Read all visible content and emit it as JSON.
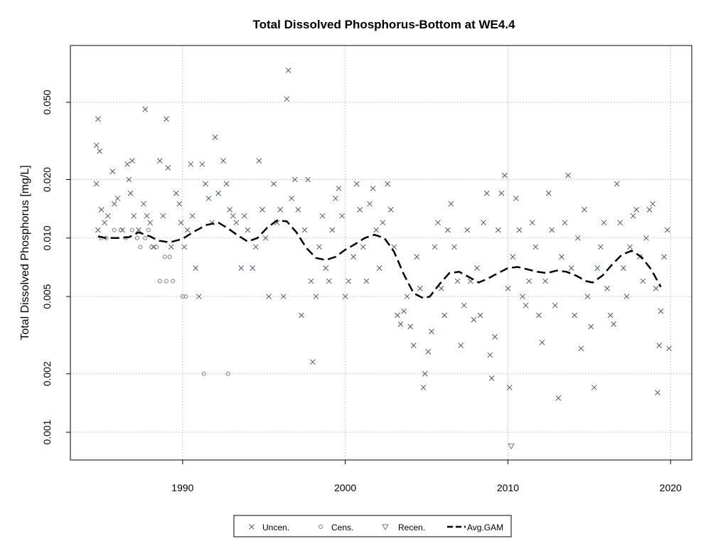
{
  "chart_data": {
    "type": "scatter",
    "title": "Total Dissolved Phosphorus-Bottom at WE4.4",
    "xlabel": "",
    "ylabel": "Total Dissolved Phosphorus [mg/L]",
    "xlim": [
      1983.1,
      2021.3
    ],
    "ylim": [
      0.00072,
      0.098
    ],
    "ylog": true,
    "x_ticks": [
      1990,
      2000,
      2010,
      2020
    ],
    "x_tick_labels": [
      "1990",
      "2000",
      "2010",
      "2020"
    ],
    "y_ticks": [
      0.001,
      0.002,
      0.005,
      0.01,
      0.02,
      0.05
    ],
    "y_tick_labels": [
      "0.001",
      "0.002",
      "0.005",
      "0.010",
      "0.020",
      "0.050"
    ],
    "grid": true,
    "legend_placement": "bottom-center",
    "colors": {
      "uncen": "#4a5670",
      "cens": "#7a7a7a",
      "recen": "#7a7a7a",
      "gam": "#000000"
    },
    "series": [
      {
        "name": "Uncen.",
        "marker": "x",
        "points": [
          [
            1984.7,
            0.03
          ],
          [
            1984.8,
            0.041
          ],
          [
            1984.9,
            0.028
          ],
          [
            1984.7,
            0.019
          ],
          [
            1985.0,
            0.014
          ],
          [
            1984.8,
            0.011
          ],
          [
            1985.2,
            0.012
          ],
          [
            1985.4,
            0.013
          ],
          [
            1985.7,
            0.022
          ],
          [
            1985.8,
            0.015
          ],
          [
            1986.0,
            0.016
          ],
          [
            1986.3,
            0.011
          ],
          [
            1986.6,
            0.024
          ],
          [
            1986.7,
            0.02
          ],
          [
            1986.9,
            0.025
          ],
          [
            1986.8,
            0.017
          ],
          [
            1987.0,
            0.013
          ],
          [
            1987.3,
            0.011
          ],
          [
            1987.6,
            0.015
          ],
          [
            1987.7,
            0.046
          ],
          [
            1987.8,
            0.013
          ],
          [
            1988.0,
            0.012
          ],
          [
            1988.2,
            0.009
          ],
          [
            1988.6,
            0.025
          ],
          [
            1988.8,
            0.013
          ],
          [
            1989.0,
            0.041
          ],
          [
            1989.1,
            0.023
          ],
          [
            1989.3,
            0.009
          ],
          [
            1989.6,
            0.017
          ],
          [
            1989.8,
            0.015
          ],
          [
            1989.9,
            0.012
          ],
          [
            1990.1,
            0.009
          ],
          [
            1990.3,
            0.011
          ],
          [
            1990.5,
            0.024
          ],
          [
            1990.6,
            0.013
          ],
          [
            1990.8,
            0.007
          ],
          [
            1991.0,
            0.005
          ],
          [
            1991.2,
            0.024
          ],
          [
            1991.4,
            0.019
          ],
          [
            1991.6,
            0.016
          ],
          [
            1991.8,
            0.012
          ],
          [
            1992.0,
            0.033
          ],
          [
            1992.2,
            0.017
          ],
          [
            1992.5,
            0.025
          ],
          [
            1992.7,
            0.019
          ],
          [
            1992.9,
            0.014
          ],
          [
            1993.1,
            0.013
          ],
          [
            1993.3,
            0.012
          ],
          [
            1993.6,
            0.007
          ],
          [
            1993.8,
            0.013
          ],
          [
            1994.0,
            0.011
          ],
          [
            1994.3,
            0.007
          ],
          [
            1994.5,
            0.009
          ],
          [
            1994.7,
            0.025
          ],
          [
            1994.9,
            0.014
          ],
          [
            1995.1,
            0.01
          ],
          [
            1995.3,
            0.005
          ],
          [
            1995.6,
            0.019
          ],
          [
            1995.8,
            0.012
          ],
          [
            1996.0,
            0.014
          ],
          [
            1996.2,
            0.005
          ],
          [
            1996.4,
            0.052
          ],
          [
            1996.5,
            0.073
          ],
          [
            1996.7,
            0.016
          ],
          [
            1996.9,
            0.02
          ],
          [
            1997.1,
            0.014
          ],
          [
            1997.3,
            0.004
          ],
          [
            1997.5,
            0.011
          ],
          [
            1997.7,
            0.02
          ],
          [
            1997.9,
            0.006
          ],
          [
            1998.0,
            0.0023
          ],
          [
            1998.2,
            0.005
          ],
          [
            1998.4,
            0.009
          ],
          [
            1998.6,
            0.013
          ],
          [
            1998.8,
            0.007
          ],
          [
            1999.0,
            0.006
          ],
          [
            1999.2,
            0.011
          ],
          [
            1999.4,
            0.016
          ],
          [
            1999.6,
            0.018
          ],
          [
            1999.8,
            0.013
          ],
          [
            2000.0,
            0.005
          ],
          [
            2000.2,
            0.006
          ],
          [
            2000.5,
            0.008
          ],
          [
            2000.7,
            0.019
          ],
          [
            2000.9,
            0.014
          ],
          [
            2001.1,
            0.009
          ],
          [
            2001.3,
            0.006
          ],
          [
            2001.5,
            0.015
          ],
          [
            2001.7,
            0.018
          ],
          [
            2001.9,
            0.011
          ],
          [
            2002.1,
            0.007
          ],
          [
            2002.3,
            0.012
          ],
          [
            2002.6,
            0.019
          ],
          [
            2002.8,
            0.014
          ],
          [
            2003.0,
            0.009
          ],
          [
            2003.2,
            0.004
          ],
          [
            2003.4,
            0.0036
          ],
          [
            2003.6,
            0.0042
          ],
          [
            2003.8,
            0.005
          ],
          [
            2004.0,
            0.0035
          ],
          [
            2004.2,
            0.0028
          ],
          [
            2004.4,
            0.008
          ],
          [
            2004.6,
            0.0055
          ],
          [
            2004.8,
            0.0017
          ],
          [
            2004.9,
            0.002
          ],
          [
            2005.1,
            0.0026
          ],
          [
            2005.3,
            0.0033
          ],
          [
            2005.5,
            0.009
          ],
          [
            2005.7,
            0.012
          ],
          [
            2005.9,
            0.0055
          ],
          [
            2006.1,
            0.004
          ],
          [
            2006.3,
            0.011
          ],
          [
            2006.5,
            0.015
          ],
          [
            2006.7,
            0.009
          ],
          [
            2006.9,
            0.006
          ],
          [
            2007.1,
            0.0028
          ],
          [
            2007.3,
            0.0045
          ],
          [
            2007.5,
            0.011
          ],
          [
            2007.7,
            0.006
          ],
          [
            2007.9,
            0.0038
          ],
          [
            2008.1,
            0.007
          ],
          [
            2008.3,
            0.004
          ],
          [
            2008.5,
            0.012
          ],
          [
            2008.7,
            0.017
          ],
          [
            2008.9,
            0.0025
          ],
          [
            2009.0,
            0.0019
          ],
          [
            2009.2,
            0.0031
          ],
          [
            2009.4,
            0.011
          ],
          [
            2009.6,
            0.017
          ],
          [
            2009.8,
            0.021
          ],
          [
            2010.0,
            0.0055
          ],
          [
            2010.1,
            0.0017
          ],
          [
            2010.3,
            0.008
          ],
          [
            2010.5,
            0.016
          ],
          [
            2010.7,
            0.011
          ],
          [
            2010.9,
            0.005
          ],
          [
            2011.1,
            0.0045
          ],
          [
            2011.3,
            0.006
          ],
          [
            2011.5,
            0.012
          ],
          [
            2011.7,
            0.009
          ],
          [
            2011.9,
            0.004
          ],
          [
            2012.1,
            0.0029
          ],
          [
            2012.3,
            0.006
          ],
          [
            2012.5,
            0.017
          ],
          [
            2012.7,
            0.011
          ],
          [
            2012.9,
            0.0045
          ],
          [
            2013.1,
            0.0015
          ],
          [
            2013.3,
            0.008
          ],
          [
            2013.5,
            0.012
          ],
          [
            2013.7,
            0.021
          ],
          [
            2013.9,
            0.007
          ],
          [
            2014.1,
            0.004
          ],
          [
            2014.3,
            0.01
          ],
          [
            2014.5,
            0.0027
          ],
          [
            2014.7,
            0.014
          ],
          [
            2014.9,
            0.005
          ],
          [
            2015.1,
            0.0035
          ],
          [
            2015.3,
            0.0017
          ],
          [
            2015.5,
            0.007
          ],
          [
            2015.7,
            0.009
          ],
          [
            2015.9,
            0.012
          ],
          [
            2016.1,
            0.0055
          ],
          [
            2016.3,
            0.004
          ],
          [
            2016.5,
            0.0036
          ],
          [
            2016.7,
            0.019
          ],
          [
            2016.9,
            0.012
          ],
          [
            2017.1,
            0.007
          ],
          [
            2017.3,
            0.005
          ],
          [
            2017.5,
            0.009
          ],
          [
            2017.7,
            0.013
          ],
          [
            2017.9,
            0.014
          ],
          [
            2018.1,
            0.008
          ],
          [
            2018.3,
            0.006
          ],
          [
            2018.5,
            0.01
          ],
          [
            2018.7,
            0.014
          ],
          [
            2018.9,
            0.015
          ],
          [
            2019.1,
            0.0055
          ],
          [
            2019.2,
            0.0016
          ],
          [
            2019.3,
            0.0028
          ],
          [
            2019.4,
            0.0042
          ],
          [
            2019.6,
            0.008
          ],
          [
            2019.8,
            0.011
          ],
          [
            2019.9,
            0.0027
          ]
        ]
      },
      {
        "name": "Cens.",
        "marker": "circle",
        "points": [
          [
            1985.0,
            0.01
          ],
          [
            1985.3,
            0.01
          ],
          [
            1985.8,
            0.011
          ],
          [
            1986.2,
            0.011
          ],
          [
            1986.5,
            0.01
          ],
          [
            1986.9,
            0.011
          ],
          [
            1987.2,
            0.01
          ],
          [
            1987.4,
            0.009
          ],
          [
            1987.7,
            0.01
          ],
          [
            1987.9,
            0.011
          ],
          [
            1988.1,
            0.009
          ],
          [
            1988.4,
            0.009
          ],
          [
            1988.6,
            0.006
          ],
          [
            1988.9,
            0.008
          ],
          [
            1989.0,
            0.006
          ],
          [
            1989.2,
            0.008
          ],
          [
            1989.4,
            0.006
          ],
          [
            1990.0,
            0.005
          ],
          [
            1990.2,
            0.005
          ],
          [
            1991.3,
            0.002
          ],
          [
            1992.8,
            0.002
          ]
        ]
      },
      {
        "name": "Recen.",
        "marker": "triangle-down",
        "points": [
          [
            2010.2,
            0.00085
          ]
        ]
      },
      {
        "name": "Avg.GAM",
        "marker": "dashed-line",
        "points": [
          [
            1984.8,
            0.0102
          ],
          [
            1985.3,
            0.01
          ],
          [
            1986.0,
            0.01
          ],
          [
            1986.7,
            0.0101
          ],
          [
            1987.3,
            0.0107
          ],
          [
            1988.0,
            0.0102
          ],
          [
            1988.5,
            0.0097
          ],
          [
            1989.2,
            0.0095
          ],
          [
            1990.0,
            0.0099
          ],
          [
            1990.7,
            0.0108
          ],
          [
            1991.5,
            0.0117
          ],
          [
            1992.2,
            0.012
          ],
          [
            1992.8,
            0.0112
          ],
          [
            1993.4,
            0.0103
          ],
          [
            1994.0,
            0.0096
          ],
          [
            1994.6,
            0.01
          ],
          [
            1995.2,
            0.0113
          ],
          [
            1995.8,
            0.0123
          ],
          [
            1996.4,
            0.0122
          ],
          [
            1997.0,
            0.0107
          ],
          [
            1997.6,
            0.0089
          ],
          [
            1998.2,
            0.0079
          ],
          [
            1998.8,
            0.0077
          ],
          [
            1999.4,
            0.008
          ],
          [
            2000.0,
            0.0087
          ],
          [
            2000.6,
            0.0093
          ],
          [
            2001.2,
            0.01
          ],
          [
            2001.8,
            0.0104
          ],
          [
            2002.4,
            0.01
          ],
          [
            2003.0,
            0.0085
          ],
          [
            2003.6,
            0.0065
          ],
          [
            2004.2,
            0.0052
          ],
          [
            2004.8,
            0.0049
          ],
          [
            2005.2,
            0.005
          ],
          [
            2005.8,
            0.0058
          ],
          [
            2006.4,
            0.0066
          ],
          [
            2007.0,
            0.0067
          ],
          [
            2007.6,
            0.0063
          ],
          [
            2008.2,
            0.0059
          ],
          [
            2008.8,
            0.0062
          ],
          [
            2009.4,
            0.0066
          ],
          [
            2010.0,
            0.007
          ],
          [
            2010.6,
            0.0071
          ],
          [
            2011.2,
            0.0069
          ],
          [
            2011.8,
            0.0067
          ],
          [
            2012.4,
            0.0066
          ],
          [
            2013.0,
            0.0068
          ],
          [
            2013.6,
            0.0067
          ],
          [
            2014.2,
            0.0064
          ],
          [
            2014.8,
            0.006
          ],
          [
            2015.2,
            0.0059
          ],
          [
            2015.8,
            0.0064
          ],
          [
            2016.4,
            0.0073
          ],
          [
            2017.0,
            0.0082
          ],
          [
            2017.6,
            0.0086
          ],
          [
            2018.2,
            0.008
          ],
          [
            2018.8,
            0.0069
          ],
          [
            2019.4,
            0.0056
          ]
        ]
      }
    ]
  }
}
